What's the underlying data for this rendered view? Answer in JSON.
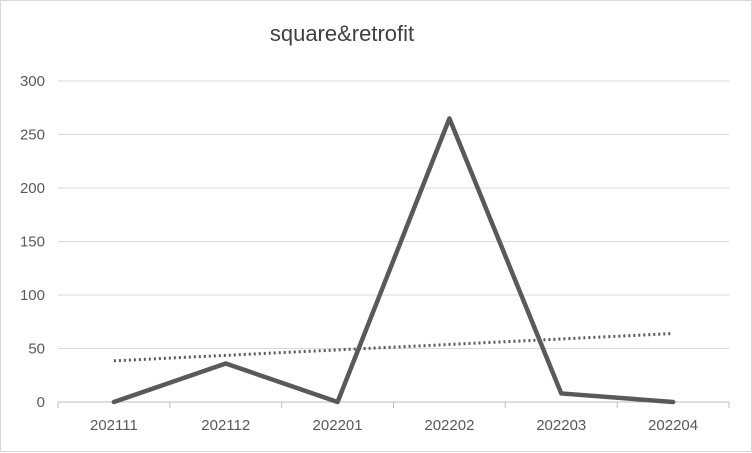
{
  "chart_data": {
    "type": "line",
    "title": "square&retrofit",
    "xlabel": "",
    "ylabel": "",
    "categories": [
      "202111",
      "202112",
      "202201",
      "202202",
      "202203",
      "202204"
    ],
    "series": [
      {
        "values": [
          0,
          36,
          0,
          265,
          8,
          0
        ],
        "color": "#595959",
        "style": "solid"
      },
      {
        "values": [
          38.5,
          43.6,
          48.7,
          53.8,
          58.9,
          64
        ],
        "color": "#595959",
        "style": "dotted",
        "kind": "linear trendline"
      }
    ],
    "ylim": [
      0,
      300
    ],
    "yticks": [
      0,
      50,
      100,
      150,
      200,
      250,
      300
    ],
    "grid": true,
    "legend": "none"
  }
}
